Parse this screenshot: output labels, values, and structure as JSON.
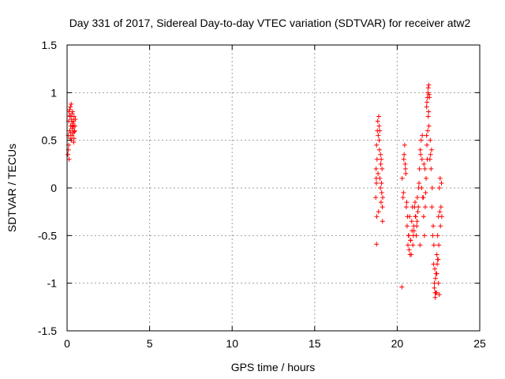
{
  "chart_data": {
    "type": "scatter",
    "title": "Day 331 of 2017, Sidereal Day-to-day VTEC variation (SDTVAR) for receiver atw2",
    "xlabel": "GPS time / hours",
    "ylabel": "SDTVAR / TECUs",
    "xlim": [
      0,
      25
    ],
    "ylim": [
      -1.5,
      1.5
    ],
    "x_ticks": [
      0,
      5,
      10,
      15,
      20,
      25
    ],
    "x_tick_labels": [
      "0",
      "5",
      "10",
      "15",
      "20",
      "25"
    ],
    "y_ticks": [
      -1.5,
      -1,
      -0.5,
      0,
      0.5,
      1,
      1.5
    ],
    "y_tick_labels": [
      "-1.5",
      "-1",
      "-0.5",
      "0",
      "0.5",
      "1",
      "1.5"
    ],
    "grid": true,
    "marker": "+",
    "color": "#ff0000",
    "series": [
      {
        "name": "atw2",
        "x": [
          0.05,
          0.08,
          0.1,
          0.12,
          0.15,
          0.18,
          0.2,
          0.22,
          0.25,
          0.28,
          0.3,
          0.32,
          0.35,
          0.38,
          0.4,
          0.42,
          0.45,
          0.48,
          0.5,
          0.1,
          0.15,
          0.2,
          0.25,
          0.3,
          0.35,
          0.4,
          0.12,
          0.18,
          0.28,
          0.38,
          0.45,
          0.08,
          0.22,
          0.33,
          0.42,
          18.7,
          18.72,
          18.75,
          18.78,
          18.8,
          18.82,
          18.85,
          18.88,
          18.9,
          18.92,
          18.95,
          18.98,
          19.0,
          19.02,
          19.05,
          19.08,
          19.1,
          19.12,
          18.76,
          18.84,
          18.91,
          18.99,
          19.06,
          18.73,
          18.87,
          18.94,
          19.03,
          19.11,
          18.74,
          20.3,
          20.35,
          20.4,
          20.45,
          20.5,
          20.55,
          20.6,
          20.65,
          20.7,
          20.75,
          20.8,
          20.85,
          20.9,
          20.95,
          21.0,
          21.05,
          21.1,
          21.15,
          21.2,
          21.25,
          21.3,
          21.35,
          21.4,
          21.45,
          21.5,
          21.55,
          21.6,
          21.65,
          21.7,
          21.75,
          21.8,
          21.85,
          21.9,
          21.95,
          22.0,
          22.05,
          22.1,
          22.15,
          22.2,
          22.25,
          22.3,
          22.35,
          22.4,
          22.45,
          22.5,
          22.55,
          22.6,
          22.65,
          22.7,
          20.42,
          20.52,
          20.62,
          20.72,
          20.82,
          20.92,
          21.02,
          21.12,
          21.22,
          21.32,
          21.42,
          21.52,
          21.62,
          21.72,
          21.82,
          21.92,
          22.02,
          22.12,
          22.22,
          22.32,
          22.42,
          22.52,
          22.62,
          20.38,
          20.48,
          20.58,
          20.68,
          20.78,
          20.88,
          20.98,
          21.08,
          21.18,
          21.28,
          21.38,
          21.48,
          21.58,
          21.68,
          21.78,
          21.88,
          21.98,
          22.08,
          22.18,
          22.28,
          22.38,
          22.48,
          22.58,
          22.68,
          21.78,
          21.8,
          21.83,
          21.86,
          21.88,
          21.91,
          21.93,
          22.25,
          22.3,
          22.35,
          22.4,
          22.45,
          22.5,
          22.55,
          18.75,
          20.28
        ],
        "y": [
          0.35,
          0.55,
          0.7,
          0.8,
          0.6,
          0.75,
          0.85,
          0.65,
          0.5,
          0.72,
          0.78,
          0.62,
          0.68,
          0.58,
          0.7,
          0.75,
          0.6,
          0.65,
          0.72,
          0.45,
          0.82,
          0.52,
          0.88,
          0.55,
          0.66,
          0.48,
          0.3,
          0.76,
          0.7,
          0.64,
          0.59,
          0.4,
          0.58,
          0.8,
          0.52,
          -0.1,
          0.2,
          0.45,
          0.3,
          0.6,
          0.7,
          0.55,
          0.75,
          0.65,
          0.4,
          0.1,
          0.0,
          0.25,
          -0.15,
          0.05,
          0.2,
          -0.2,
          -0.1,
          -0.3,
          0.15,
          0.5,
          0.35,
          -0.05,
          0.1,
          -0.25,
          0.6,
          0.3,
          -0.35,
          0.05,
          0.1,
          -0.1,
          0.3,
          0.45,
          0.2,
          -0.2,
          -0.4,
          -0.6,
          -0.5,
          -0.3,
          -0.55,
          -0.7,
          -0.45,
          -0.6,
          -0.4,
          -0.2,
          -0.3,
          -0.5,
          -0.35,
          -0.25,
          0.0,
          0.2,
          0.4,
          0.5,
          0.3,
          -0.1,
          -0.3,
          -0.5,
          -0.2,
          0.1,
          0.45,
          0.6,
          0.8,
          0.95,
          0.5,
          0.2,
          -0.2,
          -0.5,
          -0.8,
          -1.0,
          -1.1,
          -0.9,
          -0.7,
          -0.5,
          -0.3,
          0.0,
          0.1,
          -0.2,
          -0.3,
          0.35,
          0.15,
          -0.3,
          -0.65,
          -0.55,
          -0.2,
          -0.45,
          -0.3,
          -0.1,
          0.05,
          0.35,
          0.55,
          0.25,
          -0.05,
          0.3,
          0.65,
          0.35,
          0.0,
          -0.6,
          -0.95,
          -0.8,
          -0.6,
          -0.4,
          -0.05,
          0.25,
          -0.15,
          -0.5,
          -0.7,
          -0.35,
          -0.5,
          -0.15,
          -0.4,
          -0.2,
          -0.6,
          0.0,
          -0.1,
          0.2,
          0.55,
          0.75,
          0.3,
          0.4,
          -0.4,
          -0.85,
          -1.1,
          -0.75,
          -0.25,
          0.05,
          0.85,
          0.9,
          0.95,
          1.0,
          1.05,
          1.08,
          0.98,
          -1.05,
          -1.15,
          -1.1,
          -0.9,
          -0.75,
          -1.0,
          -1.12,
          -0.59,
          -1.04
        ]
      }
    ]
  }
}
